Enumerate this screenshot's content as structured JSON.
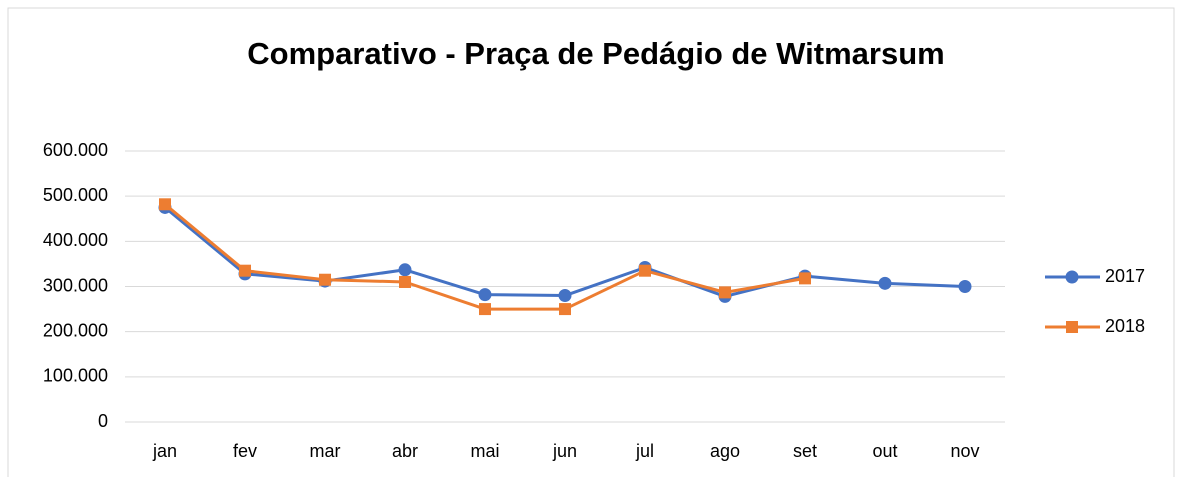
{
  "chart_data": {
    "type": "line",
    "title": "Comparativo - Praça de Pedágio de Witmarsum",
    "categories": [
      "jan",
      "fev",
      "mar",
      "abr",
      "mai",
      "jun",
      "jul",
      "ago",
      "set",
      "out",
      "nov"
    ],
    "series": [
      {
        "name": "2017",
        "color": "#4472c4",
        "marker": "circle",
        "values": [
          475000,
          328000,
          312000,
          337000,
          282000,
          280000,
          342000,
          278000,
          323000,
          307000,
          300000
        ]
      },
      {
        "name": "2018",
        "color": "#ed7d31",
        "marker": "square",
        "values": [
          482000,
          335000,
          315000,
          310000,
          250000,
          250000,
          335000,
          287000,
          318000,
          null,
          null
        ]
      }
    ],
    "ylim": [
      0,
      600000
    ],
    "yticks": [
      0,
      {
        "value": 100000,
        "label": "100.000"
      },
      {
        "value": 200000,
        "label": "200.000"
      },
      {
        "value": 300000,
        "label": "300.000"
      },
      {
        "value": 400000,
        "label": "400.000"
      },
      {
        "value": 500000,
        "label": "500.000"
      },
      {
        "value": 600000,
        "label": "600.000"
      }
    ],
    "grid": true,
    "legend": "right"
  }
}
